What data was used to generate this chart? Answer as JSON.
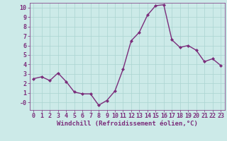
{
  "x": [
    0,
    1,
    2,
    3,
    4,
    5,
    6,
    7,
    8,
    9,
    10,
    11,
    12,
    13,
    14,
    15,
    16,
    17,
    18,
    19,
    20,
    21,
    22,
    23
  ],
  "y": [
    2.5,
    2.7,
    2.3,
    3.1,
    2.2,
    1.1,
    0.9,
    0.9,
    -0.3,
    0.2,
    1.2,
    3.5,
    6.5,
    7.4,
    9.2,
    10.2,
    10.3,
    6.6,
    5.8,
    6.0,
    5.5,
    4.3,
    4.6,
    3.9
  ],
  "line_color": "#7b2d7b",
  "marker": "D",
  "marker_size": 2.0,
  "line_width": 1.0,
  "bg_color": "#cceae8",
  "grid_color": "#aad4d0",
  "xlabel": "Windchill (Refroidissement éolien,°C)",
  "xlabel_fontsize": 6.5,
  "tick_fontsize": 6.0,
  "ylim": [
    -0.8,
    10.5
  ],
  "xlim": [
    -0.5,
    23.5
  ],
  "yticks": [
    0,
    1,
    2,
    3,
    4,
    5,
    6,
    7,
    8,
    9,
    10
  ],
  "ytick_labels": [
    "0",
    "1",
    "2",
    "3",
    "4",
    "5",
    "6",
    "7",
    "8",
    "9",
    "10"
  ],
  "xticks": [
    0,
    1,
    2,
    3,
    4,
    5,
    6,
    7,
    8,
    9,
    10,
    11,
    12,
    13,
    14,
    15,
    16,
    17,
    18,
    19,
    20,
    21,
    22,
    23
  ],
  "title_y_label": "-0"
}
